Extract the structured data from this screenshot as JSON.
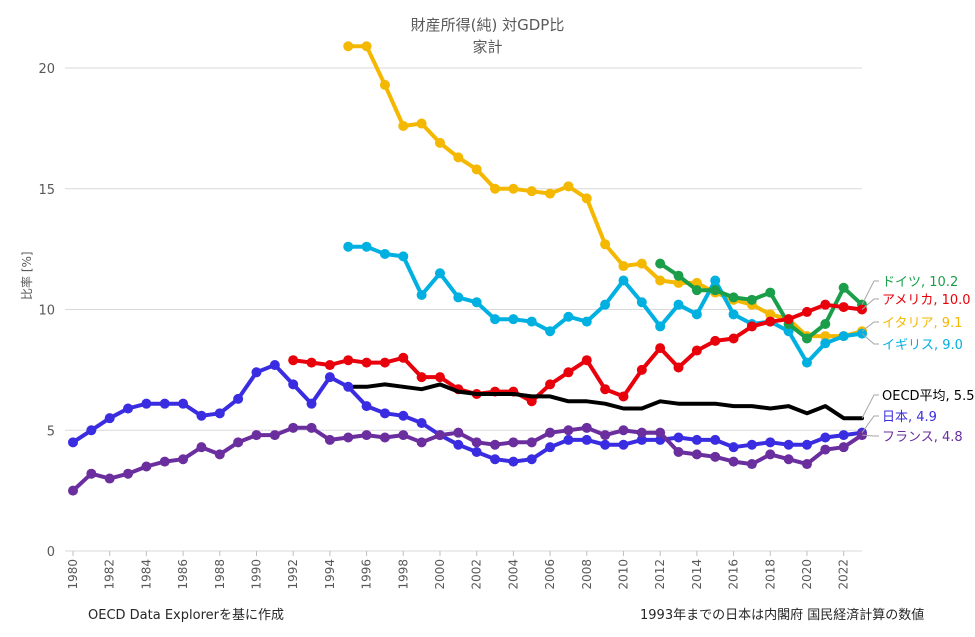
{
  "chart_data": {
    "type": "line",
    "title": "財産所得(純) 対GDP比",
    "subtitle": "家計",
    "xlabel": "",
    "ylabel": "比率 [%]",
    "xlim": [
      1980,
      2023
    ],
    "ylim": [
      0,
      20
    ],
    "yticks": [
      0,
      5,
      10,
      15,
      20
    ],
    "xticks": [
      1980,
      1982,
      1984,
      1986,
      1988,
      1990,
      1992,
      1994,
      1996,
      1998,
      2000,
      2002,
      2004,
      2006,
      2008,
      2010,
      2012,
      2014,
      2016,
      2018,
      2020,
      2022
    ],
    "grid": "horizontal",
    "series": [
      {
        "name": "イタリア",
        "color": "#f5b800",
        "markers": true,
        "x": [
          1995,
          1996,
          1997,
          1998,
          1999,
          2000,
          2001,
          2002,
          2003,
          2004,
          2005,
          2006,
          2007,
          2008,
          2009,
          2010,
          2011,
          2012,
          2013,
          2014,
          2015,
          2016,
          2017,
          2018,
          2019,
          2020,
          2021,
          2022,
          2023
        ],
        "y": [
          20.9,
          20.9,
          19.3,
          17.6,
          17.7,
          16.9,
          16.3,
          15.8,
          15.0,
          15.0,
          14.9,
          14.8,
          15.1,
          14.6,
          12.7,
          11.8,
          11.9,
          11.2,
          11.1,
          11.1,
          10.7,
          10.4,
          10.2,
          9.8,
          9.6,
          8.9,
          8.9,
          8.9,
          9.1
        ]
      },
      {
        "name": "イギリス",
        "color": "#00b0e0",
        "markers": true,
        "x": [
          1995,
          1996,
          1997,
          1998,
          1999,
          2000,
          2001,
          2002,
          2003,
          2004,
          2005,
          2006,
          2007,
          2008,
          2009,
          2010,
          2011,
          2012,
          2013,
          2014,
          2015,
          2016,
          2017,
          2018,
          2019,
          2020,
          2021,
          2022,
          2023
        ],
        "y": [
          12.6,
          12.6,
          12.3,
          12.2,
          10.6,
          11.5,
          10.5,
          10.3,
          9.6,
          9.6,
          9.5,
          9.1,
          9.7,
          9.5,
          10.2,
          11.2,
          10.3,
          9.3,
          10.2,
          9.8,
          11.2,
          9.8,
          9.4,
          9.5,
          9.1,
          7.8,
          8.6,
          8.9,
          9.0
        ]
      },
      {
        "name": "ドイツ",
        "color": "#1a9e4a",
        "markers": true,
        "x": [
          2012,
          2013,
          2014,
          2015,
          2016,
          2017,
          2018,
          2019,
          2020,
          2021,
          2022,
          2023
        ],
        "y": [
          11.9,
          11.4,
          10.8,
          10.8,
          10.5,
          10.4,
          10.7,
          9.4,
          8.8,
          9.4,
          10.9,
          10.2
        ]
      },
      {
        "name": "アメリカ",
        "color": "#e8000b",
        "markers": true,
        "x": [
          1992,
          1993,
          1994,
          1995,
          1996,
          1997,
          1998,
          1999,
          2000,
          2001,
          2002,
          2003,
          2004,
          2005,
          2006,
          2007,
          2008,
          2009,
          2010,
          2011,
          2012,
          2013,
          2014,
          2015,
          2016,
          2017,
          2018,
          2019,
          2020,
          2021,
          2022,
          2023
        ],
        "y": [
          7.9,
          7.8,
          7.7,
          7.9,
          7.8,
          7.8,
          8.0,
          7.2,
          7.2,
          6.7,
          6.5,
          6.6,
          6.6,
          6.2,
          6.9,
          7.4,
          7.9,
          6.7,
          6.4,
          7.5,
          8.4,
          7.6,
          8.3,
          8.7,
          8.8,
          9.3,
          9.5,
          9.6,
          9.9,
          10.2,
          10.1,
          10.0
        ]
      },
      {
        "name": "OECD平均",
        "color": "#000000",
        "markers": false,
        "x": [
          1995,
          1996,
          1997,
          1998,
          1999,
          2000,
          2001,
          2002,
          2003,
          2004,
          2005,
          2006,
          2007,
          2008,
          2009,
          2010,
          2011,
          2012,
          2013,
          2014,
          2015,
          2016,
          2017,
          2018,
          2019,
          2020,
          2021,
          2022,
          2023
        ],
        "y": [
          6.8,
          6.8,
          6.9,
          6.8,
          6.7,
          6.9,
          6.6,
          6.5,
          6.5,
          6.5,
          6.4,
          6.4,
          6.2,
          6.2,
          6.1,
          5.9,
          5.9,
          6.2,
          6.1,
          6.1,
          6.1,
          6.0,
          6.0,
          5.9,
          6.0,
          5.7,
          6.0,
          5.5,
          5.5
        ]
      },
      {
        "name": "日本",
        "color": "#3a2ce0",
        "markers": true,
        "x": [
          1980,
          1981,
          1982,
          1983,
          1984,
          1985,
          1986,
          1987,
          1988,
          1989,
          1990,
          1991,
          1992,
          1993,
          1994,
          1995,
          1996,
          1997,
          1998,
          1999,
          2000,
          2001,
          2002,
          2003,
          2004,
          2005,
          2006,
          2007,
          2008,
          2009,
          2010,
          2011,
          2012,
          2013,
          2014,
          2015,
          2016,
          2017,
          2018,
          2019,
          2020,
          2021,
          2022,
          2023
        ],
        "y": [
          4.5,
          5.0,
          5.5,
          5.9,
          6.1,
          6.1,
          6.1,
          5.6,
          5.7,
          6.3,
          7.4,
          7.7,
          6.9,
          6.1,
          7.2,
          6.8,
          6.0,
          5.7,
          5.6,
          5.3,
          4.8,
          4.4,
          4.1,
          3.8,
          3.7,
          3.8,
          4.3,
          4.6,
          4.6,
          4.4,
          4.4,
          4.6,
          4.6,
          4.7,
          4.6,
          4.6,
          4.3,
          4.4,
          4.5,
          4.4,
          4.4,
          4.7,
          4.8,
          4.9
        ]
      },
      {
        "name": "フランス",
        "color": "#6b2e9e",
        "markers": true,
        "x": [
          1980,
          1981,
          1982,
          1983,
          1984,
          1985,
          1986,
          1987,
          1988,
          1989,
          1990,
          1991,
          1992,
          1993,
          1994,
          1995,
          1996,
          1997,
          1998,
          1999,
          2000,
          2001,
          2002,
          2003,
          2004,
          2005,
          2006,
          2007,
          2008,
          2009,
          2010,
          2011,
          2012,
          2013,
          2014,
          2015,
          2016,
          2017,
          2018,
          2019,
          2020,
          2021,
          2022,
          2023
        ],
        "y": [
          2.5,
          3.2,
          3.0,
          3.2,
          3.5,
          3.7,
          3.8,
          4.3,
          4.0,
          4.5,
          4.8,
          4.8,
          5.1,
          5.1,
          4.6,
          4.7,
          4.8,
          4.7,
          4.8,
          4.5,
          4.8,
          4.9,
          4.5,
          4.4,
          4.5,
          4.5,
          4.9,
          5.0,
          5.1,
          4.8,
          5.0,
          4.9,
          4.9,
          4.1,
          4.0,
          3.9,
          3.7,
          3.6,
          4.0,
          3.8,
          3.6,
          4.2,
          4.3,
          4.8
        ]
      }
    ],
    "end_labels": [
      {
        "series": "ドイツ",
        "text": "ドイツ, 10.2"
      },
      {
        "series": "アメリカ",
        "text": "アメリカ, 10.0"
      },
      {
        "series": "イタリア",
        "text": "イタリア, 9.1"
      },
      {
        "series": "イギリス",
        "text": "イギリス, 9.0"
      },
      {
        "series": "OECD平均",
        "text": "OECD平均, 5.5"
      },
      {
        "series": "日本",
        "text": "日本, 4.9"
      },
      {
        "series": "フランス",
        "text": "フランス, 4.8"
      }
    ]
  },
  "notes": {
    "source": "OECD Data Explorerを基に作成",
    "japan_note": "1993年までの日本は内閣府 国民経済計算の数値"
  }
}
